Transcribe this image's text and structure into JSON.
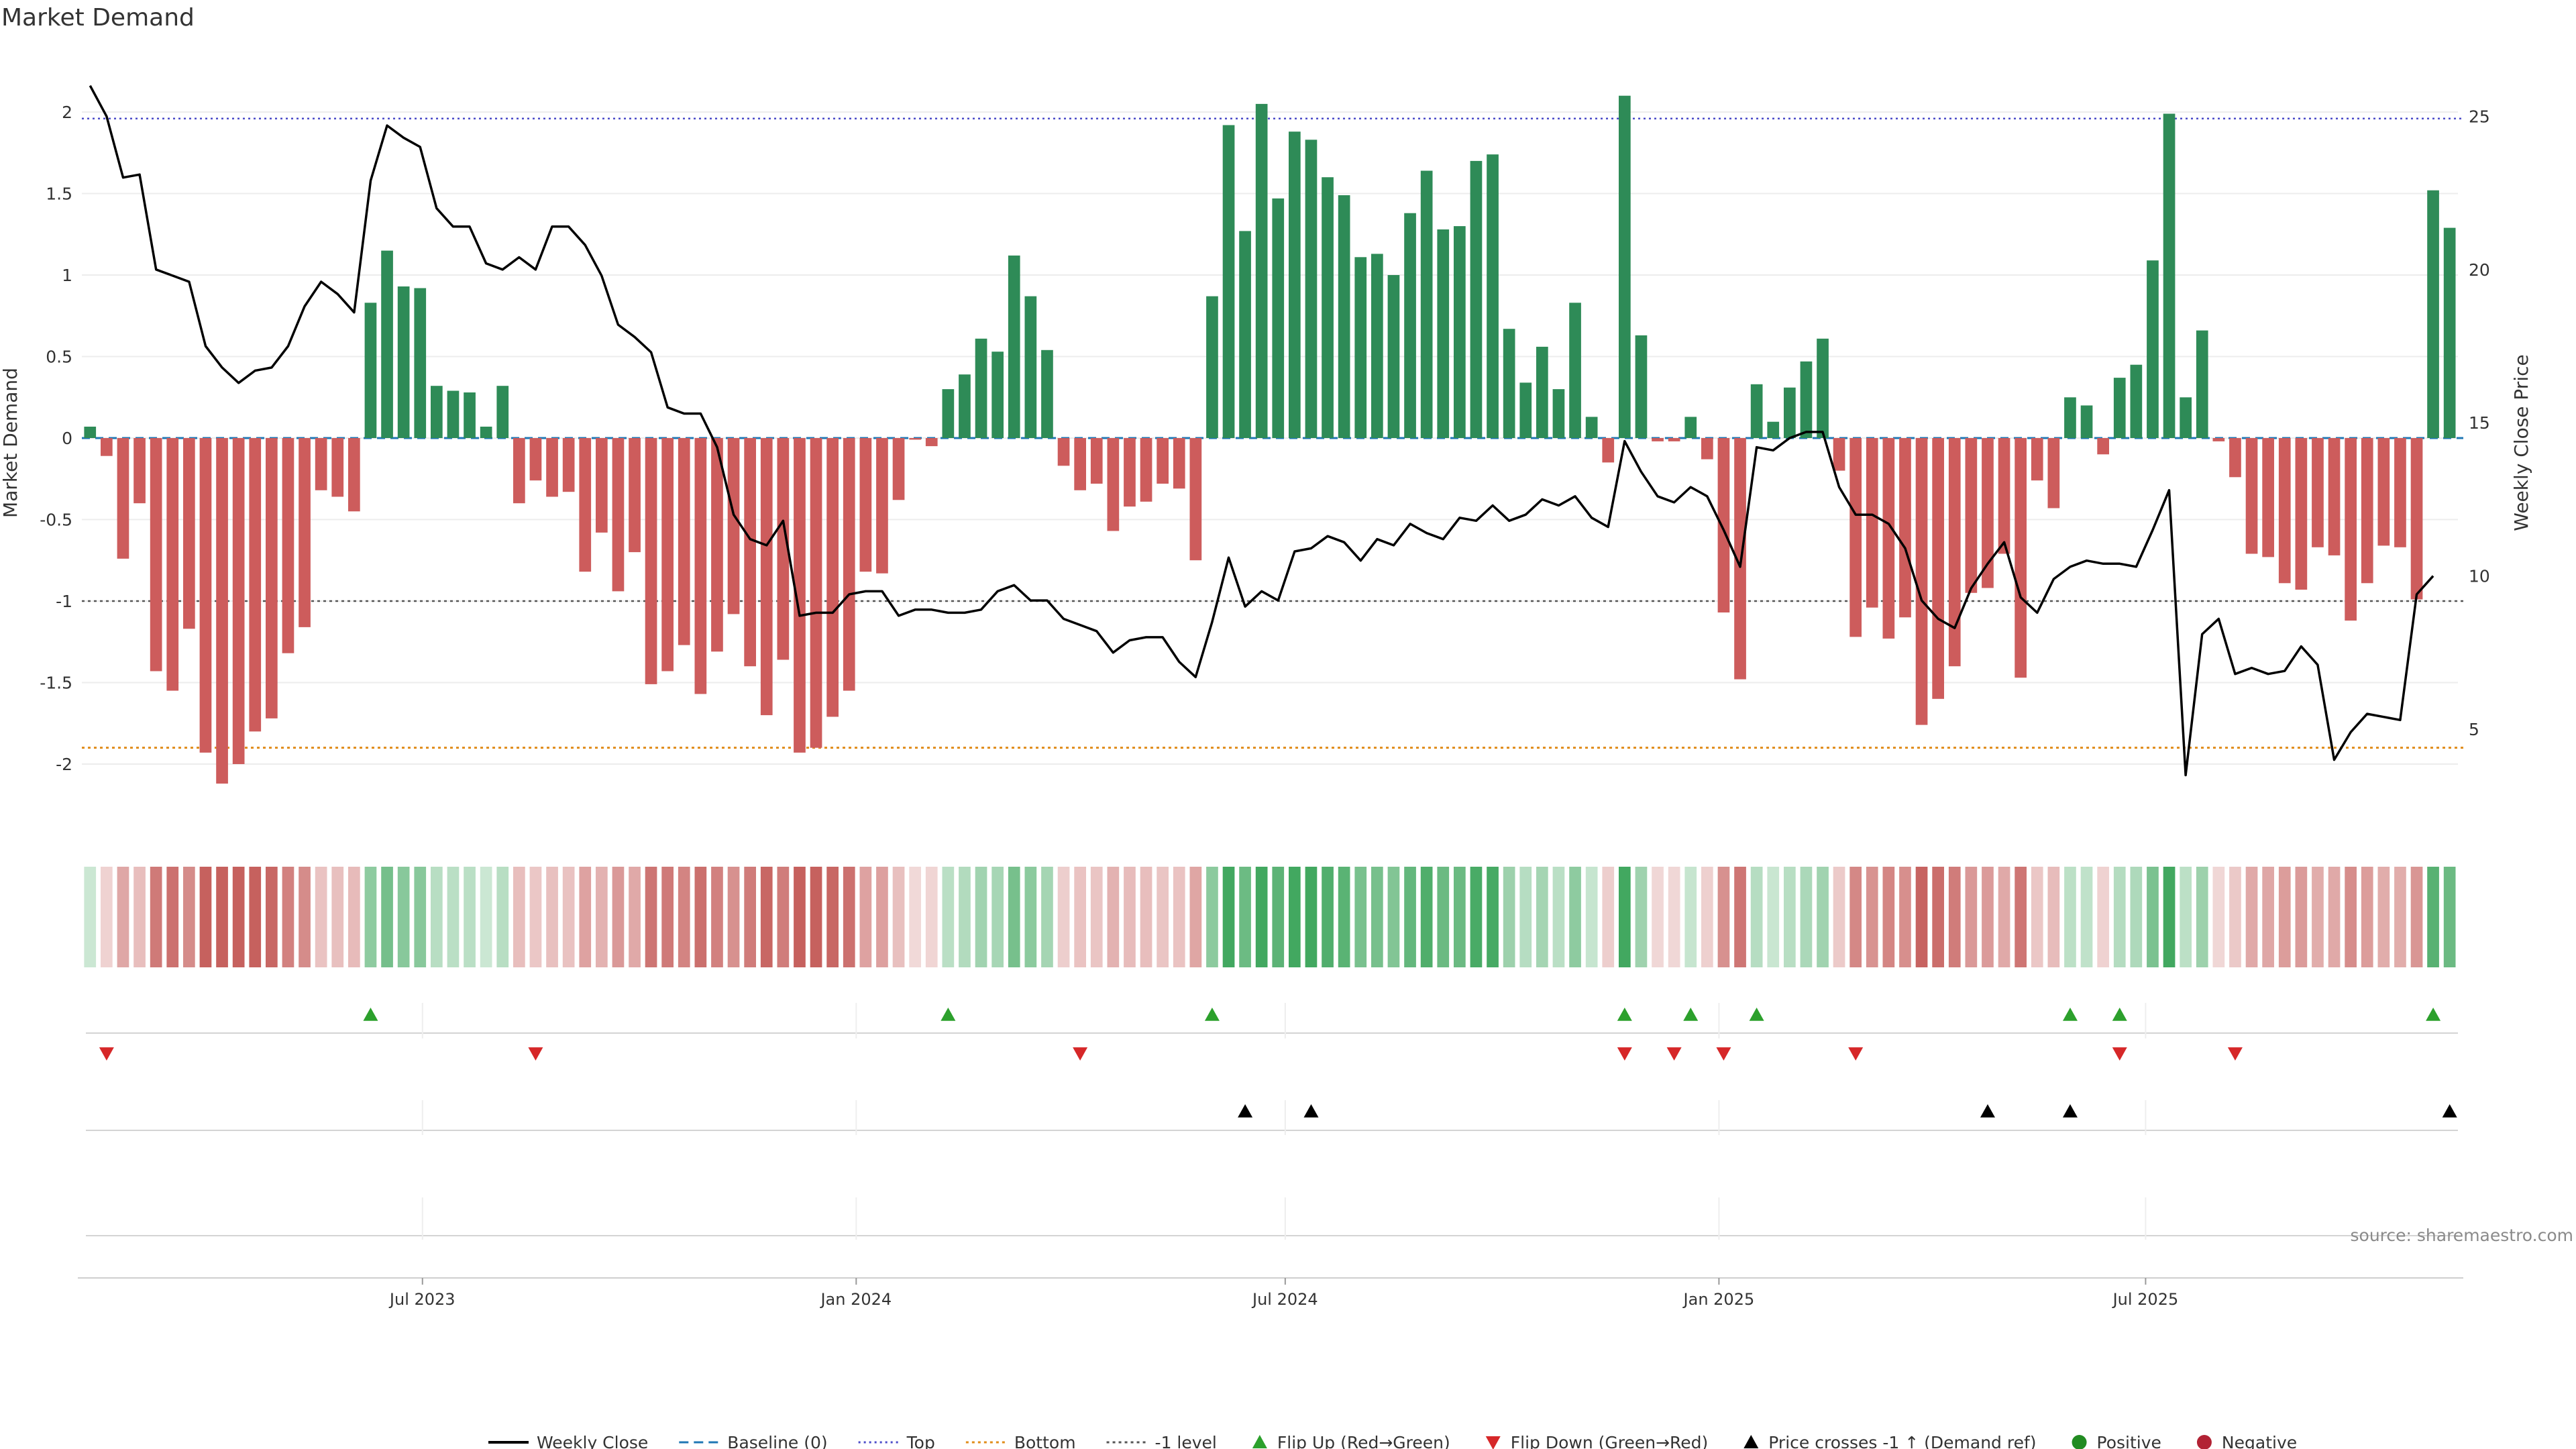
{
  "chart_data": {
    "type": "bar",
    "title": "Market Demand",
    "ylabel_left": "Market Demand",
    "ylabel_right": "Weekly Close Price",
    "source": "source: sharemaestro.com",
    "ylim_left": [
      -2.35,
      2.35
    ],
    "ylim_right": [
      2,
      27
    ],
    "left_ticks": [
      "2",
      "1.5",
      "1",
      "0.5",
      "0",
      "-0.5",
      "-1",
      "-1.5",
      "-2"
    ],
    "right_ticks": [
      "25",
      "20",
      "15",
      "10",
      "5"
    ],
    "x_start": "2023-02-10",
    "x_end": "2025-11-07",
    "x_ticks": [
      {
        "date": "2023-07-01",
        "label": "Jul 2023"
      },
      {
        "date": "2024-01-01",
        "label": "Jan 2024"
      },
      {
        "date": "2024-07-01",
        "label": "Jul 2024"
      },
      {
        "date": "2025-01-01",
        "label": "Jan 2025"
      },
      {
        "date": "2025-07-01",
        "label": "Jul 2025"
      }
    ],
    "reference_lines": {
      "top": 1.96,
      "bottom": -1.9,
      "minus_one": -1.0,
      "baseline": 0
    },
    "grid": true,
    "legend_position": "bottom",
    "colors": {
      "positive": "#2e8b57",
      "negative": "#cd5c5c",
      "close": "#000000",
      "baseline": "#1f77b4",
      "top": "#4b4bc8",
      "bottom": "#e08c1a",
      "minus_one": "#555555",
      "flip_up": "#2ca02c",
      "flip_down": "#d62728",
      "cross": "#000000",
      "strip_green": "#2e9e4f",
      "strip_red": "#c0504d"
    },
    "series": [
      {
        "name": "Market Demand",
        "values": [
          0.07,
          -0.11,
          -0.74,
          -0.4,
          -1.43,
          -1.55,
          -1.17,
          -1.93,
          -2.12,
          -2.0,
          -1.8,
          -1.72,
          -1.32,
          -1.16,
          -0.32,
          -0.36,
          -0.45,
          0.83,
          1.15,
          0.93,
          0.92,
          0.32,
          0.29,
          0.28,
          0.07,
          0.32,
          -0.4,
          -0.26,
          -0.36,
          -0.33,
          -0.82,
          -0.58,
          -0.94,
          -0.7,
          -1.51,
          -1.43,
          -1.27,
          -1.57,
          -1.31,
          -1.08,
          -1.4,
          -1.7,
          -1.36,
          -1.93,
          -1.9,
          -1.71,
          -1.55,
          -0.82,
          -0.83,
          -0.38,
          -0.01,
          -0.05,
          0.3,
          0.39,
          0.61,
          0.53,
          1.12,
          0.87,
          0.54,
          -0.17,
          -0.32,
          -0.28,
          -0.57,
          -0.42,
          -0.39,
          -0.28,
          -0.31,
          -0.75,
          0.87,
          1.92,
          1.27,
          2.05,
          1.47,
          1.88,
          1.83,
          1.6,
          1.49,
          1.11,
          1.13,
          1.0,
          1.38,
          1.64,
          1.28,
          1.3,
          1.7,
          1.74,
          0.67,
          0.34,
          0.56,
          0.3,
          0.83,
          0.13,
          -0.15,
          2.1,
          0.63,
          -0.02,
          -0.02,
          0.13,
          -0.13,
          -1.07,
          -1.48,
          0.33,
          0.1,
          0.31,
          0.47,
          0.61,
          -0.2,
          -1.22,
          -1.04,
          -1.23,
          -1.1,
          -1.76,
          -1.6,
          -1.4,
          -0.95,
          -0.92,
          -0.71,
          -1.47,
          -0.26,
          -0.43,
          0.25,
          0.2,
          -0.1,
          0.37,
          0.45,
          1.09,
          1.99,
          0.25,
          0.66,
          -0.02,
          -0.24,
          -0.71,
          -0.73,
          -0.89,
          -0.93,
          -0.67,
          -0.72,
          -1.12,
          -0.89,
          -0.66,
          -0.67,
          -0.99,
          1.52,
          1.29
        ]
      },
      {
        "name": "Weekly Close",
        "values": [
          26.0,
          25.0,
          23.0,
          23.1,
          20.0,
          19.8,
          19.6,
          17.5,
          16.8,
          16.3,
          16.7,
          16.8,
          17.5,
          18.8,
          19.6,
          19.2,
          18.6,
          22.9,
          24.7,
          24.3,
          24.0,
          22.0,
          21.4,
          21.4,
          20.2,
          20.0,
          20.4,
          20.0,
          21.4,
          21.4,
          20.8,
          19.8,
          18.2,
          17.8,
          17.3,
          15.5,
          15.3,
          15.3,
          14.2,
          12.0,
          11.2,
          11.0,
          11.8,
          8.7,
          8.8,
          8.8,
          9.4,
          9.5,
          9.5,
          8.7,
          8.9,
          8.9,
          8.8,
          8.8,
          8.9,
          9.5,
          9.7,
          9.2,
          9.2,
          8.6,
          8.4,
          8.2,
          7.5,
          7.9,
          8.0,
          8.0,
          7.2,
          6.7,
          8.5,
          10.6,
          9.0,
          9.5,
          9.2,
          10.8,
          10.9,
          11.3,
          11.1,
          10.5,
          11.2,
          11.0,
          11.7,
          11.4,
          11.2,
          11.9,
          11.8,
          12.3,
          11.8,
          12.0,
          12.5,
          12.3,
          12.6,
          11.9,
          11.6,
          14.4,
          13.4,
          12.6,
          12.4,
          12.9,
          12.6,
          11.5,
          10.3,
          14.2,
          14.1,
          14.5,
          14.7,
          14.7,
          12.9,
          12.0,
          12.0,
          11.7,
          10.9,
          9.2,
          8.6,
          8.3,
          9.6,
          10.4,
          11.1,
          9.3,
          8.8,
          9.9,
          10.3,
          10.5,
          10.4,
          10.4,
          10.3,
          11.5,
          12.8,
          3.5,
          8.1,
          8.6,
          6.8,
          7.0,
          6.8,
          6.9,
          7.7,
          7.1,
          4.0,
          4.9,
          5.5,
          5.4,
          5.3,
          9.4,
          10.0
        ]
      }
    ],
    "flip_up_weeks": [
      17,
      52,
      68,
      93,
      97,
      101,
      120,
      123,
      142
    ],
    "flip_down_weeks": [
      1,
      27,
      60,
      93,
      96,
      99,
      107,
      123,
      130
    ],
    "cross_weeks": [
      70,
      74,
      115,
      120,
      143
    ],
    "legend": [
      {
        "key": "close",
        "label": "Weekly Close"
      },
      {
        "key": "baseline",
        "label": "Baseline (0)"
      },
      {
        "key": "top",
        "label": "Top"
      },
      {
        "key": "bottom",
        "label": "Bottom"
      },
      {
        "key": "minus_one",
        "label": "-1 level"
      },
      {
        "key": "flip_up",
        "label": "Flip Up (Red→Green)"
      },
      {
        "key": "flip_down",
        "label": "Flip Down (Green→Red)"
      },
      {
        "key": "cross",
        "label": "Price crosses -1 ↑ (Demand ref)"
      },
      {
        "key": "positive",
        "label": "Positive"
      },
      {
        "key": "negative",
        "label": "Negative"
      }
    ]
  }
}
